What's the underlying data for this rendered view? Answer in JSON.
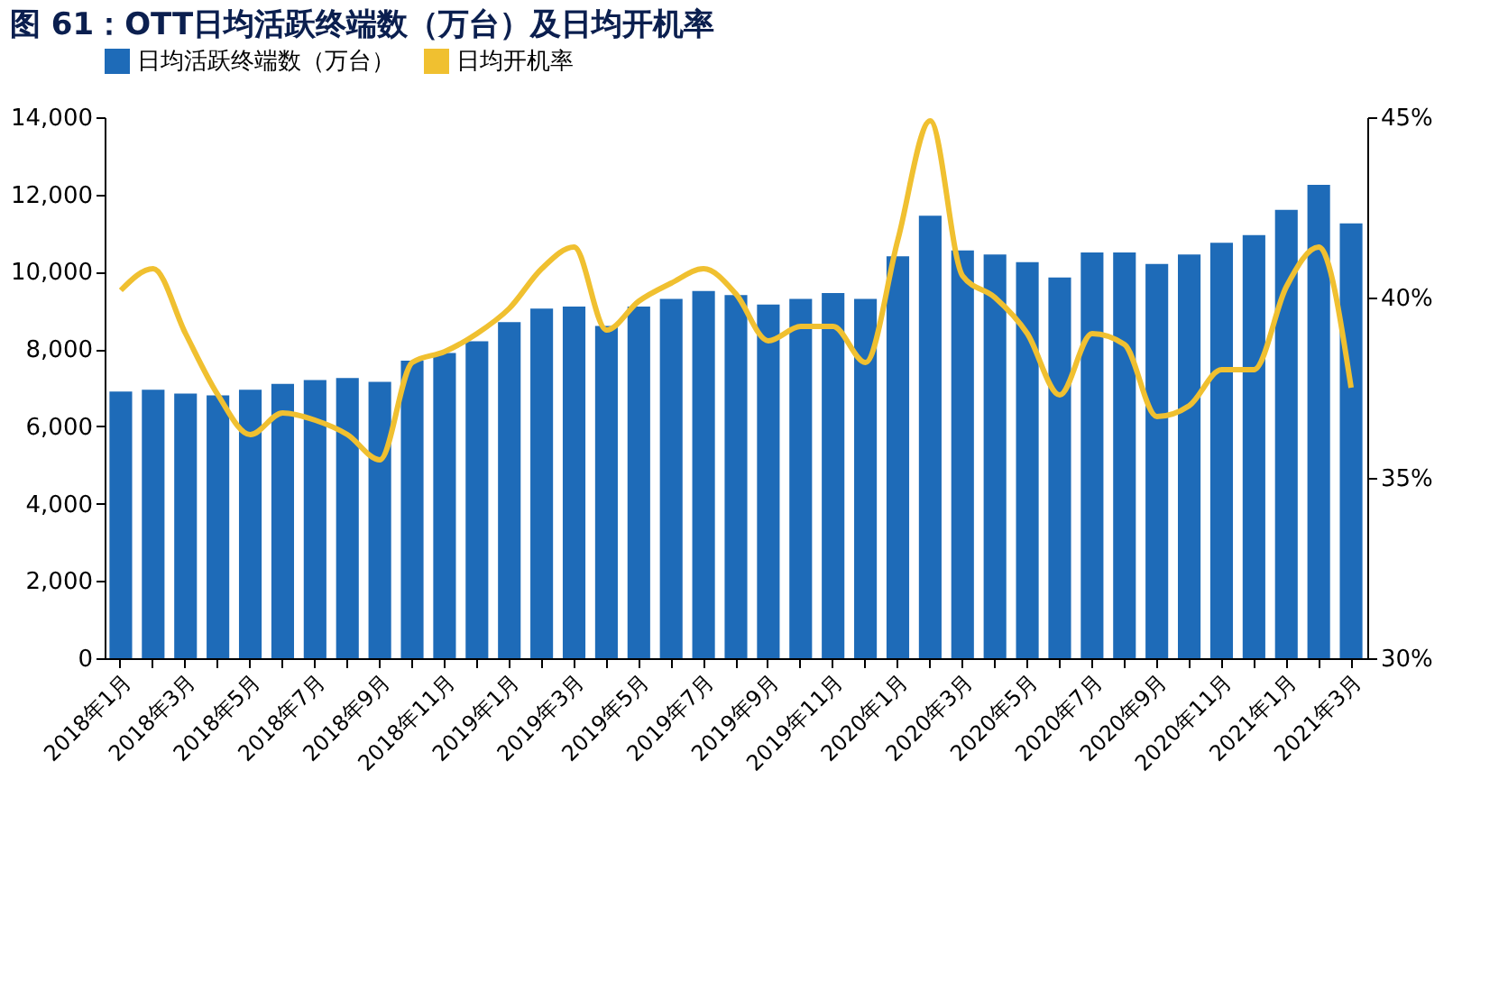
{
  "chart_data": {
    "type": "bar",
    "title": "图 61：OTT日均活跃终端数（万台）及日均开机率",
    "categories": [
      "2018年1月",
      null,
      "2018年3月",
      null,
      "2018年5月",
      null,
      "2018年7月",
      null,
      "2018年9月",
      null,
      "2018年11月",
      null,
      "2019年1月",
      null,
      "2019年3月",
      null,
      "2019年5月",
      null,
      "2019年7月",
      null,
      "2019年9月",
      null,
      "2019年11月",
      null,
      "2020年1月",
      null,
      "2020年3月",
      null,
      "2020年5月",
      null,
      "2020年7月",
      null,
      "2020年9月",
      null,
      "2020年11月",
      null,
      "2021年1月",
      null,
      "2021年3月"
    ],
    "series": [
      {
        "name": "日均活跃终端数（万台）",
        "color": "#1e6bb8",
        "values": [
          6900,
          6950,
          6850,
          6800,
          6950,
          7100,
          7200,
          7250,
          7150,
          7700,
          7900,
          8200,
          8700,
          9050,
          9100,
          8600,
          9100,
          9300,
          9500,
          9400,
          9150,
          9300,
          9450,
          9300,
          10400,
          11450,
          10550,
          10450,
          10250,
          9850,
          10500,
          10500,
          10200,
          10450,
          10750,
          10950,
          11600,
          12250,
          11250
        ]
      },
      {
        "name": "日均开机率",
        "type": "line",
        "axis": "y2",
        "color": "#f0c030",
        "values": [
          40.2,
          40.8,
          39.0,
          37.3,
          36.2,
          36.8,
          36.6,
          36.2,
          35.5,
          38.2,
          38.5,
          39.0,
          39.7,
          40.8,
          41.4,
          39.1,
          39.9,
          40.4,
          40.8,
          40.1,
          38.8,
          39.2,
          39.2,
          38.2,
          41.6,
          44.9,
          40.6,
          40.0,
          39.0,
          37.3,
          39.0,
          38.7,
          36.7,
          37.0,
          38.0,
          38.0,
          40.3,
          41.4,
          37.5
        ]
      }
    ],
    "ylim": [
      0,
      14000
    ],
    "yticks": [
      {
        "value": 0,
        "label": "0"
      },
      {
        "value": 2000,
        "label": "2,000"
      },
      {
        "value": 4000,
        "label": "4,000"
      },
      {
        "value": 6000,
        "label": "6,000"
      },
      {
        "value": 8000,
        "label": "8,000"
      },
      {
        "value": 10000,
        "label": "10,000"
      },
      {
        "value": 12000,
        "label": "12,000"
      },
      {
        "value": 14000,
        "label": "14,000"
      }
    ],
    "y2lim": [
      30,
      45
    ],
    "y2ticks": [
      {
        "value": 30,
        "label": "30%"
      },
      {
        "value": 35,
        "label": "35%"
      },
      {
        "value": 40,
        "label": "40%"
      },
      {
        "value": 45,
        "label": "45%"
      }
    ],
    "legend": "top",
    "grid": false
  }
}
